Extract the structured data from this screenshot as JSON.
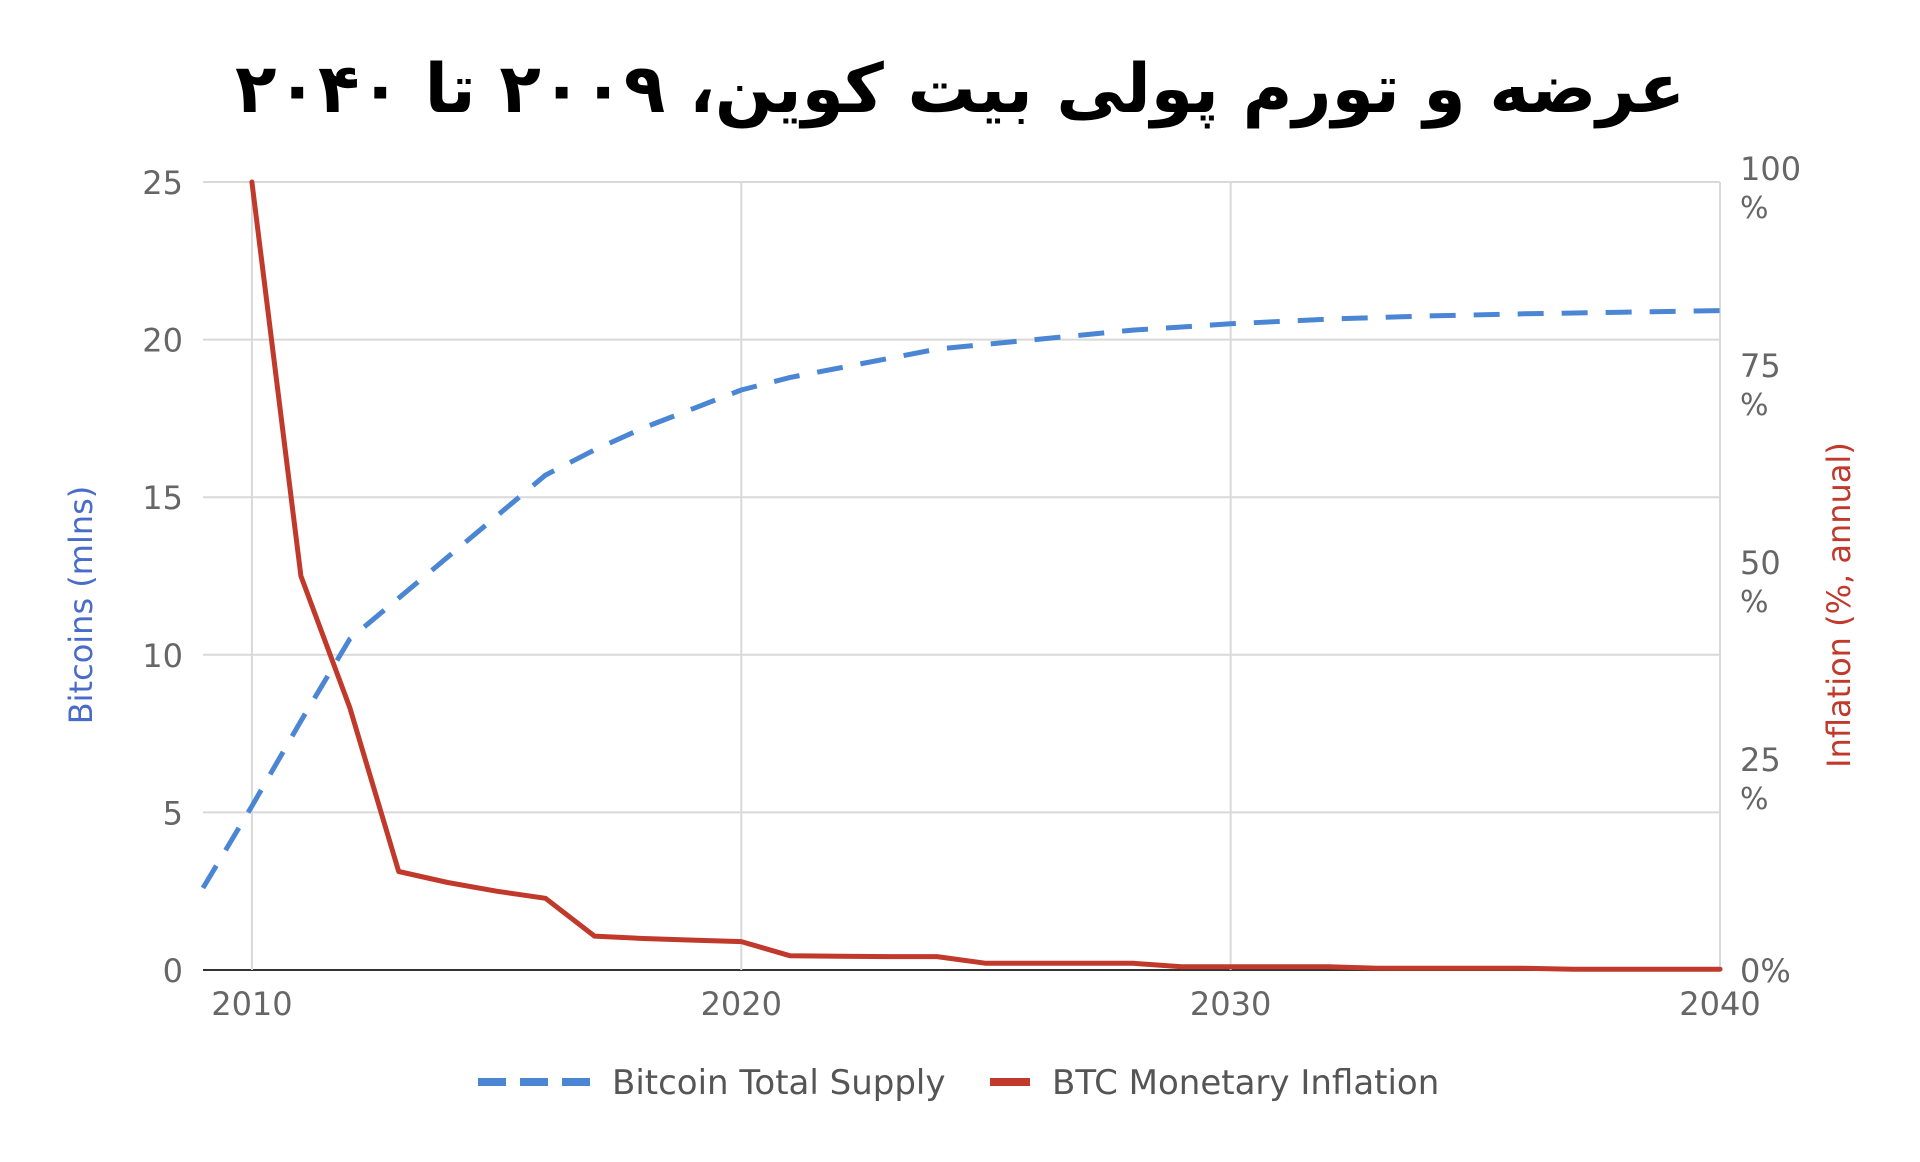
{
  "chart_data": {
    "type": "line",
    "title": "عرضه و تورم پولی بیت کوین، ۲۰۰۹ تا ۲۰۴۰",
    "xlabel": "",
    "ylabel": "Bitcoins (mlns)",
    "y2label": "Inflation (%, annual)",
    "xlim": [
      2009,
      2040
    ],
    "ylim": [
      0,
      25
    ],
    "y2lim": [
      0,
      100
    ],
    "x_ticks": [
      "2010",
      "2020",
      "2030",
      "2040"
    ],
    "y_ticks": [
      "0",
      "5",
      "10",
      "15",
      "20",
      "25"
    ],
    "y2_ticks": [
      {
        "value": "0%",
        "unit": ""
      },
      {
        "value": "25",
        "unit": "%"
      },
      {
        "value": "50",
        "unit": "%"
      },
      {
        "value": "75",
        "unit": "%"
      },
      {
        "value": "100",
        "unit": "%"
      }
    ],
    "grid": true,
    "legend_position": "bottom-center",
    "colors": {
      "supply": "#4a86d4",
      "inflation": "#c0392b",
      "grid": "#d9d9d9",
      "axis_text": "#666666"
    },
    "series": [
      {
        "name": "Bitcoin Total Supply",
        "axis": "left",
        "style": "dashed",
        "color": "#4a86d4",
        "points": [
          [
            2009,
            2.6
          ],
          [
            2010,
            5.2
          ],
          [
            2011,
            7.9
          ],
          [
            2012,
            10.5
          ],
          [
            2013,
            11.8
          ],
          [
            2014,
            13.1
          ],
          [
            2015,
            14.4
          ],
          [
            2016,
            15.7
          ],
          [
            2017,
            16.5
          ],
          [
            2018,
            17.2
          ],
          [
            2019,
            17.8
          ],
          [
            2020,
            18.4
          ],
          [
            2021,
            18.8
          ],
          [
            2022,
            19.1
          ],
          [
            2023,
            19.4
          ],
          [
            2024,
            19.7
          ],
          [
            2025,
            19.85
          ],
          [
            2026,
            20.0
          ],
          [
            2027,
            20.15
          ],
          [
            2028,
            20.3
          ],
          [
            2029,
            20.4
          ],
          [
            2030,
            20.5
          ],
          [
            2032,
            20.65
          ],
          [
            2034,
            20.75
          ],
          [
            2036,
            20.82
          ],
          [
            2038,
            20.87
          ],
          [
            2040,
            20.92
          ]
        ]
      },
      {
        "name": "BTC Monetary Inflation",
        "axis": "right",
        "style": "solid",
        "color": "#c0392b",
        "points": [
          [
            2010,
            100
          ],
          [
            2011,
            50
          ],
          [
            2012,
            33.3
          ],
          [
            2013,
            12.5
          ],
          [
            2014,
            11.1
          ],
          [
            2015,
            10.0
          ],
          [
            2016,
            9.1
          ],
          [
            2017,
            4.3
          ],
          [
            2018,
            4.0
          ],
          [
            2019,
            3.8
          ],
          [
            2020,
            3.6
          ],
          [
            2021,
            1.8
          ],
          [
            2022,
            1.75
          ],
          [
            2023,
            1.7
          ],
          [
            2024,
            1.7
          ],
          [
            2025,
            0.85
          ],
          [
            2026,
            0.85
          ],
          [
            2027,
            0.85
          ],
          [
            2028,
            0.85
          ],
          [
            2029,
            0.42
          ],
          [
            2030,
            0.42
          ],
          [
            2032,
            0.42
          ],
          [
            2033,
            0.21
          ],
          [
            2036,
            0.21
          ],
          [
            2037,
            0.1
          ],
          [
            2040,
            0.1
          ]
        ]
      }
    ]
  }
}
